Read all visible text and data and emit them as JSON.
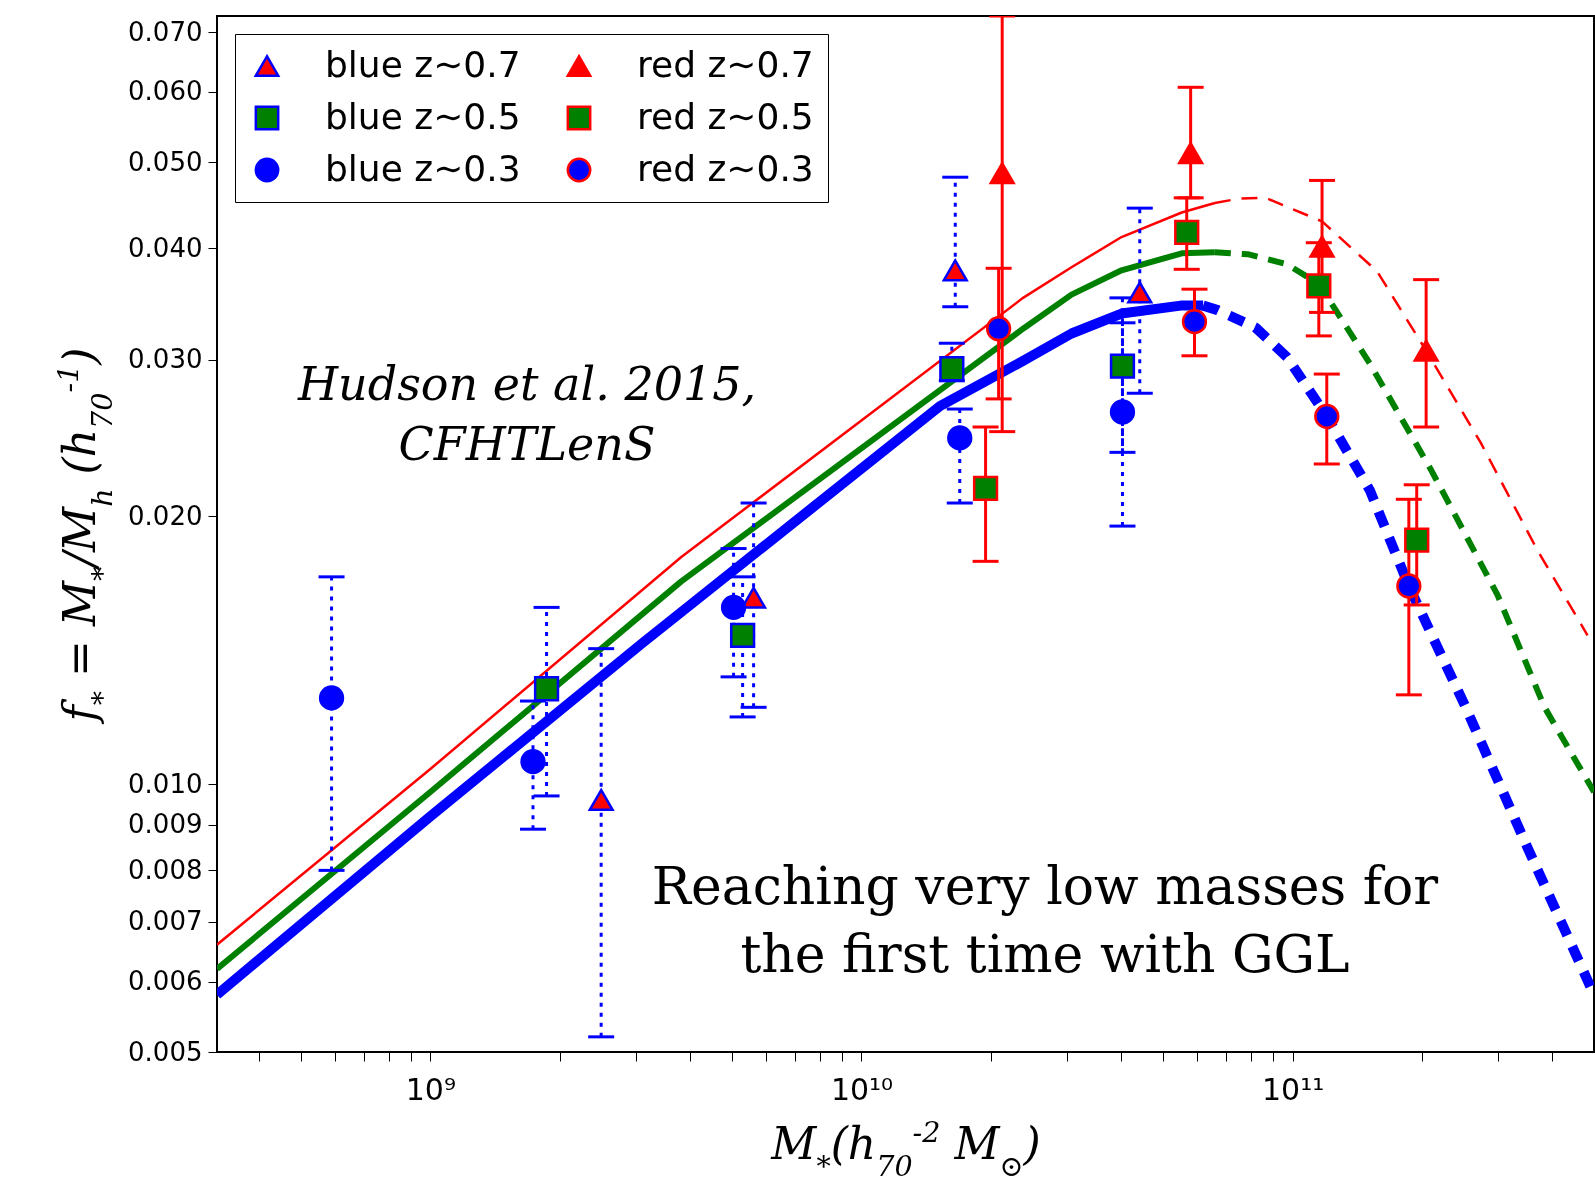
{
  "chart_data": {
    "type": "scatter",
    "xlabel": "M$_{*}$(h$_{70}$$^{-2}$ M$_{⊙}$)",
    "ylabel": "f$_{*}$ = M$_{*}$/M$_{h}$ (h$_{70}$$^{-1}$)",
    "annotations": [
      "Hudson et al. 2015,\nCFHTLenS",
      "Reaching very low masses for\nthe first time with GGL"
    ],
    "log": "xy",
    "grid": false,
    "legend": "top left",
    "xlim": [
      320000000.0,
      500000000000.0
    ],
    "ylim": [
      0.005,
      0.073
    ],
    "xticks": [
      {
        "value": 400000000.0,
        "label": null
      },
      {
        "value": 500000000.0,
        "label": null
      },
      {
        "value": 600000000.0,
        "label": null
      },
      {
        "value": 700000000.0,
        "label": null
      },
      {
        "value": 800000000.0,
        "label": null
      },
      {
        "value": 900000000.0,
        "label": null
      },
      {
        "value": 1000000000.0,
        "label": "10⁹"
      },
      {
        "value": 2000000000.0,
        "label": null
      },
      {
        "value": 3000000000.0,
        "label": null
      },
      {
        "value": 4000000000.0,
        "label": null
      },
      {
        "value": 5000000000.0,
        "label": null
      },
      {
        "value": 6000000000.0,
        "label": null
      },
      {
        "value": 7000000000.0,
        "label": null
      },
      {
        "value": 8000000000.0,
        "label": null
      },
      {
        "value": 9000000000.0,
        "label": null
      },
      {
        "value": 10000000000.0,
        "label": "10¹⁰"
      },
      {
        "value": 20000000000.0,
        "label": null
      },
      {
        "value": 30000000000.0,
        "label": null
      },
      {
        "value": 40000000000.0,
        "label": null
      },
      {
        "value": 50000000000.0,
        "label": null
      },
      {
        "value": 60000000000.0,
        "label": null
      },
      {
        "value": 70000000000.0,
        "label": null
      },
      {
        "value": 80000000000.0,
        "label": null
      },
      {
        "value": 90000000000.0,
        "label": null
      },
      {
        "value": 100000000000.0,
        "label": "10¹¹"
      },
      {
        "value": 200000000000.0,
        "label": null
      },
      {
        "value": 300000000000.0,
        "label": null
      },
      {
        "value": 400000000000.0,
        "label": null
      }
    ],
    "yticks": [
      {
        "value": 0.005,
        "label": "0.005"
      },
      {
        "value": 0.006,
        "label": "0.006"
      },
      {
        "value": 0.007,
        "label": "0.007"
      },
      {
        "value": 0.008,
        "label": "0.008"
      },
      {
        "value": 0.009,
        "label": "0.009"
      },
      {
        "value": 0.01,
        "label": "0.010"
      },
      {
        "value": 0.02,
        "label": "0.020"
      },
      {
        "value": 0.03,
        "label": "0.030"
      },
      {
        "value": 0.04,
        "label": "0.040"
      },
      {
        "value": 0.05,
        "label": "0.050"
      },
      {
        "value": 0.06,
        "label": "0.060"
      },
      {
        "value": 0.07,
        "label": "0.070"
      }
    ],
    "series": [
      {
        "type": "line",
        "color": "#ff0000",
        "line_style": "solid",
        "x": [
          320000000.0,
          1000000000.0,
          3820000000.0,
          23700000000.0,
          30700000000.0,
          40100000000.0,
          55300000000.0,
          66000000000.0
        ],
        "values": [
          0.0066,
          0.0104,
          0.018,
          0.0352,
          0.0381,
          0.0412,
          0.0439,
          0.045
        ]
      },
      {
        "type": "line",
        "color": "#ff0000",
        "line_style": "dashed",
        "x": [
          66000000000.0,
          75000000000.0,
          86500000000.0,
          117000000000.0,
          157000000000.0,
          204000000000.0,
          273000000000.0,
          370000000000.0,
          483000000000.0
        ],
        "values": [
          0.045,
          0.0455,
          0.0456,
          0.0429,
          0.0377,
          0.0307,
          0.0242,
          0.0183,
          0.0147
        ]
      },
      {
        "type": "line",
        "color": "#008000",
        "line_style": "solid",
        "x": [
          320000000.0,
          1000000000.0,
          3820000000.0,
          23700000000.0,
          30700000000.0,
          40100000000.0,
          55300000000.0,
          66000000000.0
        ],
        "values": [
          0.0062,
          0.0098,
          0.0169,
          0.0325,
          0.0355,
          0.0378,
          0.0395,
          0.0396
        ]
      },
      {
        "type": "line",
        "color": "#008000",
        "line_style": "dashed",
        "x": [
          66000000000.0,
          79000000000.0,
          97000000000.0,
          115000000000.0,
          151000000000.0,
          210000000000.0,
          299000000000.0,
          384000000000.0,
          500000000000.0
        ],
        "values": [
          0.0396,
          0.0394,
          0.0384,
          0.0365,
          0.0297,
          0.0225,
          0.0163,
          0.0122,
          0.0098
        ]
      },
      {
        "type": "line",
        "color": "#0000ff",
        "line_style": "solid",
        "x": [
          320000000.0,
          1000000000.0,
          3100000000.0,
          15200000000.0,
          23700000000.0,
          30700000000.0,
          40100000000.0,
          55000000000.0,
          62000000000.0
        ],
        "values": [
          0.0058,
          0.0092,
          0.0144,
          0.0266,
          0.0299,
          0.0321,
          0.0338,
          0.0345,
          0.0345
        ]
      },
      {
        "type": "line",
        "color": "#0000ff",
        "line_style": "dashed",
        "x": [
          62000000000.0,
          67000000000.0,
          82000000000.0,
          97000000000.0,
          120000000000.0,
          151000000000.0,
          186000000000.0,
          252000000000.0,
          350000000000.0,
          500000000000.0
        ],
        "values": [
          0.0345,
          0.0341,
          0.0326,
          0.0302,
          0.0259,
          0.0214,
          0.0167,
          0.0122,
          0.0085,
          0.0058
        ]
      },
      {
        "name": "blue z∼0.7",
        "color": "#ff0000",
        "marker": "triangle",
        "line_style": "dotted",
        "x": [
          2490000000.0,
          5620000000.0,
          16500000000.0,
          44200000000.0
        ],
        "values": [
          0.0096,
          0.0162,
          0.0378,
          0.0357
        ],
        "errors": [
          [
            0.0052,
            0.0142
          ],
          [
            0.0122,
            0.0207
          ],
          [
            0.0344,
            0.0481
          ],
          [
            0.0275,
            0.0444
          ]
        ]
      },
      {
        "name": "blue z∼0.5",
        "color": "#008000",
        "marker": "square",
        "line_style": "dotted",
        "x": [
          1860000000.0,
          5300000000.0,
          16200000000.0,
          40300000000.0
        ],
        "values": [
          0.0128,
          0.0147,
          0.0293,
          0.0295
        ],
        "errors": [
          [
            0.0097,
            0.0158
          ],
          [
            0.0119,
            0.0171
          ],
          [
            0.0284,
            0.0313
          ],
          [
            0.0236,
            0.0352
          ]
        ]
      },
      {
        "name": "blue z∼0.3",
        "color": "#0000ff",
        "marker": "circle",
        "line_style": "dotted",
        "x": [
          590000000.0,
          1730000000.0,
          5050000000.0,
          16900000000.0,
          40300000000.0
        ],
        "values": [
          0.0125,
          0.0106,
          0.0158,
          0.0245,
          0.0262
        ],
        "errors": [
          [
            0.008,
            0.0171
          ],
          [
            0.0089,
            0.0124
          ],
          [
            0.0132,
            0.0184
          ],
          [
            0.0207,
            0.0264
          ],
          [
            0.0195,
            0.033
          ]
        ]
      },
      {
        "name": "red z∼0.7",
        "color": "#ff0000",
        "marker": "triangle",
        "line_style": "solid",
        "x": [
          21200000000.0,
          58000000000.0,
          117000000000.0,
          204000000000.0
        ],
        "values": [
          0.0486,
          0.0512,
          0.0402,
          0.0307
        ],
        "errors": [
          [
            0.0249,
            0.073
          ],
          [
            0.0456,
            0.0607
          ],
          [
            0.0339,
            0.0477
          ],
          [
            0.0252,
            0.0369
          ]
        ]
      },
      {
        "name": "red z∼0.5",
        "color": "#008000",
        "marker": "square",
        "line_style": "solid",
        "x": [
          19400000000.0,
          56800000000.0,
          115000000000.0,
          194000000000.0
        ],
        "values": [
          0.0215,
          0.0417,
          0.0363,
          0.0188
        ],
        "errors": [
          [
            0.0178,
            0.0252
          ],
          [
            0.0379,
            0.0456
          ],
          [
            0.0319,
            0.0406
          ],
          [
            0.0159,
            0.0217
          ]
        ]
      },
      {
        "name": "red z∼0.3",
        "color": "#0000ff",
        "marker": "circle",
        "line_style": "solid",
        "x": [
          20800000000.0,
          59200000000.0,
          120000000000.0,
          186000000000.0
        ],
        "values": [
          0.0325,
          0.0331,
          0.0259,
          0.0167
        ],
        "errors": [
          [
            0.0271,
            0.038
          ],
          [
            0.0303,
            0.036
          ],
          [
            0.0229,
            0.0289
          ],
          [
            0.0126,
            0.0209
          ]
        ]
      }
    ]
  }
}
